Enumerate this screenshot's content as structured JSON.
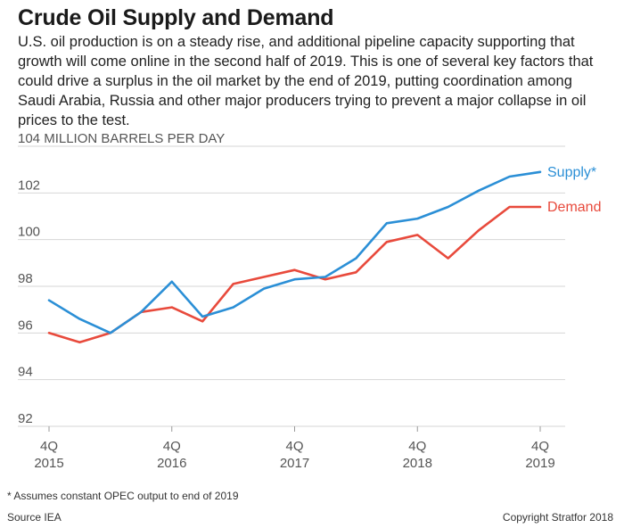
{
  "title": "Crude Oil Supply and Demand",
  "subtitle": "U.S. oil production is on a steady rise, and additional pipeline capacity supporting that growth will come online in the second half of 2019. This is one of several key factors that could drive a surplus in the oil market by the end of 2019, putting coordination among Saudi Arabia, Russia and other major producers trying to prevent a major collapse in oil prices to the test.",
  "footnote": "* Assumes constant OPEC output to end of 2019",
  "source": "Source IEA",
  "copyright": "Copyright Stratfor 2018",
  "chart_data": {
    "type": "line",
    "ylabel": "MILLION BARRELS PER DAY",
    "ylim": [
      92,
      104
    ],
    "yticks": [
      92,
      94,
      96,
      98,
      100,
      102,
      104
    ],
    "top_tick_label": "104 MILLION BARRELS PER DAY",
    "x": [
      "4Q 2015",
      "1Q 2016",
      "2Q 2016",
      "3Q 2016",
      "4Q 2016",
      "1Q 2017",
      "2Q 2017",
      "3Q 2017",
      "4Q 2017",
      "1Q 2018",
      "2Q 2018",
      "3Q 2018",
      "4Q 2018",
      "1Q 2019",
      "2Q 2019",
      "3Q 2019",
      "4Q 2019"
    ],
    "xtick_labels": [
      {
        "index": 0,
        "quarter": "4Q",
        "year": "2015"
      },
      {
        "index": 4,
        "quarter": "4Q",
        "year": "2016"
      },
      {
        "index": 8,
        "quarter": "4Q",
        "year": "2017"
      },
      {
        "index": 12,
        "quarter": "4Q",
        "year": "2018"
      },
      {
        "index": 16,
        "quarter": "4Q",
        "year": "2019"
      }
    ],
    "grid": "horizontal",
    "legend": "inline-right",
    "series": [
      {
        "name": "Supply*",
        "color": "#2b8fd6",
        "values": [
          97.4,
          96.6,
          96.0,
          96.9,
          98.2,
          96.7,
          97.1,
          97.9,
          98.3,
          98.4,
          99.2,
          100.7,
          100.9,
          101.4,
          102.1,
          102.7,
          102.9
        ]
      },
      {
        "name": "Demand",
        "color": "#e84a3c",
        "values": [
          96.0,
          95.6,
          96.0,
          96.9,
          97.1,
          96.5,
          98.1,
          98.4,
          98.7,
          98.3,
          98.6,
          99.9,
          100.2,
          99.2,
          100.4,
          101.4,
          101.4
        ]
      }
    ]
  }
}
